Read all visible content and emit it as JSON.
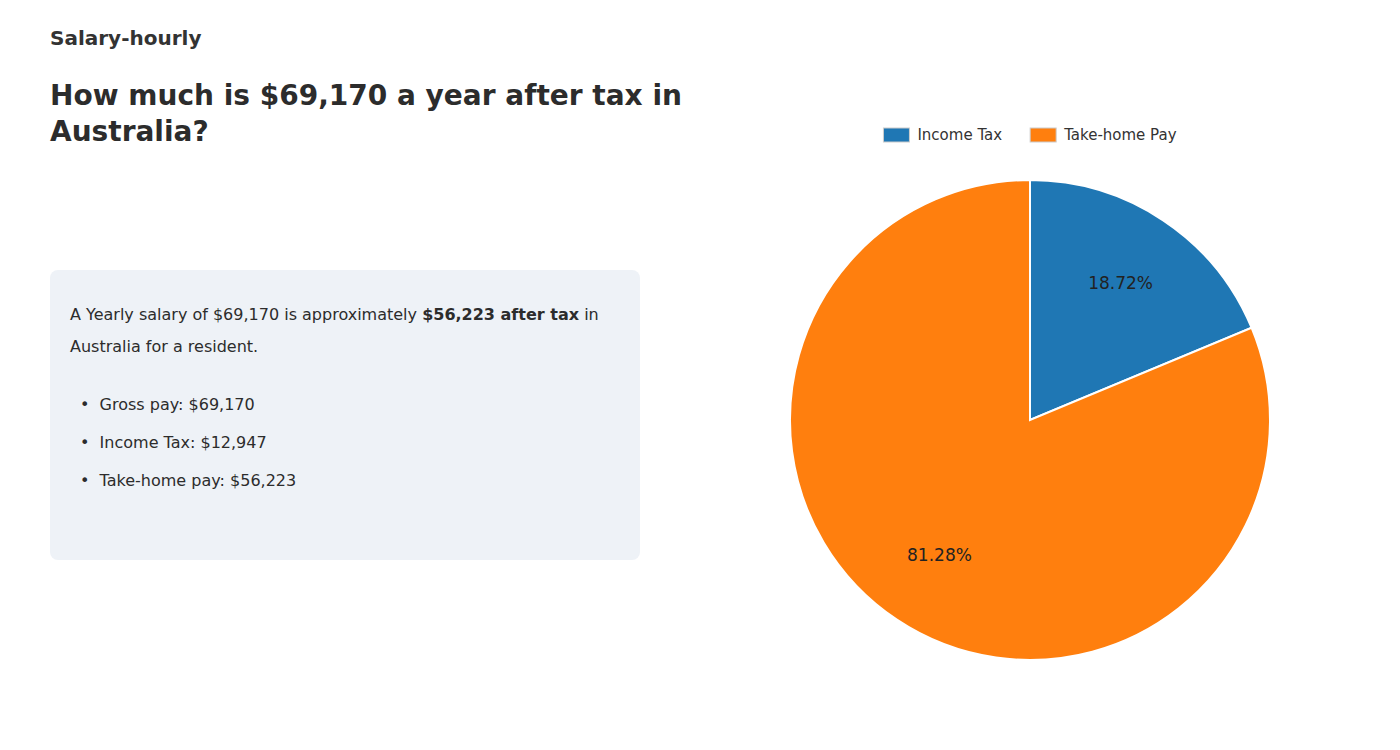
{
  "chart_data": {
    "type": "pie",
    "title": [
      "How much is $69,170 a year after tax in",
      "Australia?"
    ],
    "annotations": [
      "S",
      "alary-hourly",
      "A Yearly salary of $69,170 is approximately ",
      "$56,223 after tax",
      " in",
      "Australia for a resident.",
      "•  Gross pay: $69,170",
      "•  Income Tax: $12,947",
      "•  Take-home pay: $56,223"
    ],
    "categories": [
      "Income Tax",
      "Take-home Pay"
    ],
    "values": [
      18.72,
      81.28
    ],
    "value_labels": [
      "18.72%",
      "81.28%"
    ],
    "data_labels": true,
    "legend": "top"
  }
}
